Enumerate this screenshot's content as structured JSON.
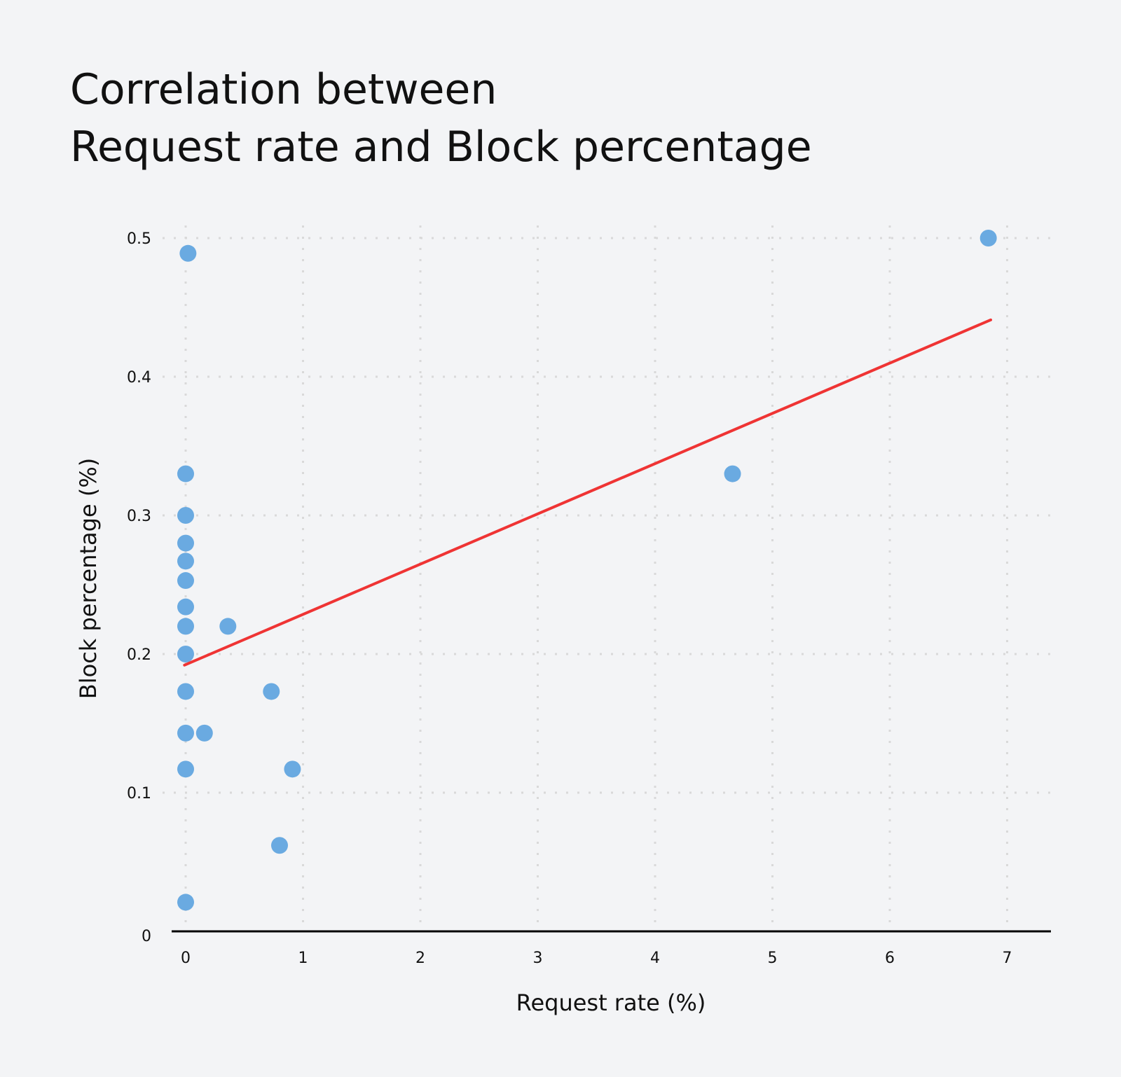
{
  "chart_data": {
    "type": "scatter",
    "title_lines": [
      "Correlation between",
      "Request rate and Block percentage"
    ],
    "xlabel": "Request rate (%)",
    "ylabel": "Block percentage (%)",
    "xlim": [
      0,
      7
    ],
    "ylim": [
      0,
      0.5
    ],
    "x_ticks": [
      "0",
      "1",
      "2",
      "3",
      "4",
      "5",
      "6",
      "7"
    ],
    "y_ticks": [
      "0",
      "0.1",
      "0.2",
      "0.3",
      "0.4",
      "0.5"
    ],
    "grid": true,
    "points": [
      {
        "x": 0.02,
        "y": 0.489
      },
      {
        "x": 6.84,
        "y": 0.5
      },
      {
        "x": 4.66,
        "y": 0.33
      },
      {
        "x": 0,
        "y": 0.33
      },
      {
        "x": 0,
        "y": 0.3
      },
      {
        "x": 0,
        "y": 0.28
      },
      {
        "x": 0,
        "y": 0.267
      },
      {
        "x": 0,
        "y": 0.253
      },
      {
        "x": 0,
        "y": 0.234
      },
      {
        "x": 0,
        "y": 0.22
      },
      {
        "x": 0.36,
        "y": 0.22
      },
      {
        "x": 0,
        "y": 0.2
      },
      {
        "x": 0,
        "y": 0.173
      },
      {
        "x": 0.73,
        "y": 0.173
      },
      {
        "x": 0,
        "y": 0.143
      },
      {
        "x": 0.16,
        "y": 0.143
      },
      {
        "x": 0,
        "y": 0.117
      },
      {
        "x": 0.91,
        "y": 0.117
      },
      {
        "x": 0.8,
        "y": 0.062
      },
      {
        "x": 0,
        "y": 0.021
      }
    ],
    "trendline": {
      "x": [
        -0.01,
        6.86
      ],
      "y": [
        0.192,
        0.441
      ]
    },
    "colors": {
      "points": "#6aaae1",
      "trendline": "#ef3434",
      "grid": "#d9d9d9",
      "axis": "#000000",
      "background": "#f3f4f6"
    }
  }
}
